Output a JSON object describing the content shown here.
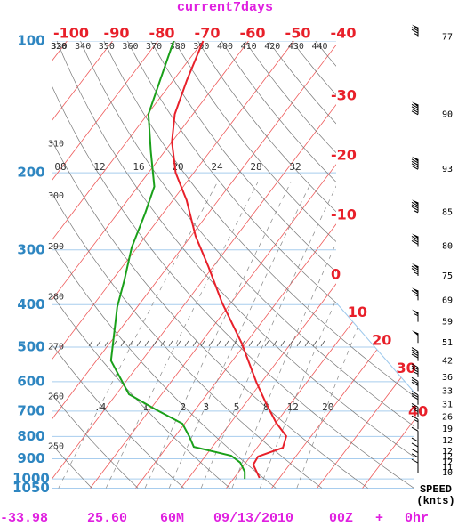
{
  "chart_data": {
    "type": "skewt",
    "title": "current7days",
    "ylog": true,
    "ylim": [
      1050,
      100
    ],
    "yticks": [
      100,
      200,
      300,
      400,
      500,
      600,
      700,
      800,
      900,
      1000,
      1050
    ],
    "xticks": [
      -100,
      -90,
      -80,
      -70,
      -60,
      -50,
      -40,
      -30,
      -20,
      -10,
      0,
      10,
      20,
      30,
      40
    ],
    "dry_adiabats_top": [
      320,
      330,
      340,
      350,
      360,
      370,
      380,
      390,
      400,
      410,
      420,
      430,
      440
    ],
    "dry_adiabats_left": [
      250,
      260,
      270,
      280,
      290,
      300,
      310
    ],
    "mixing_ratio_ticks": [
      {
        "value": 0.4,
        "label": ".4"
      },
      1,
      2,
      3,
      5,
      8,
      12,
      20
    ],
    "upper_labels": [
      "08",
      "12",
      "16",
      "20",
      "24",
      "28",
      "32"
    ],
    "series": [
      {
        "color": "#e8202a",
        "pressure": [
          100,
          123,
          147,
          170,
          200,
          231,
          279,
          328,
          396,
          489,
          603,
          678,
          744,
          799,
          849,
          889,
          928,
          995
        ],
        "values": [
          -70,
          -67,
          -64,
          -60,
          -54,
          -47,
          -39,
          -31,
          -22,
          -11,
          -1,
          5,
          10,
          14.5,
          15.7,
          11.7,
          12,
          15.6
        ]
      },
      {
        "color": "#1aa01a",
        "pressure": [
          100,
          123,
          147,
          179,
          215,
          248,
          296,
          352,
          405,
          537,
          641,
          694,
          748,
          799,
          845,
          885,
          918,
          963,
          1000
        ],
        "values": [
          -76.5,
          -72.9,
          -69.8,
          -63,
          -56.4,
          -53.9,
          -51.2,
          -47.3,
          -44.4,
          -36.8,
          -27.2,
          -18.8,
          -10.5,
          -6.9,
          -4.1,
          5.6,
          8.8,
          11.3,
          12.5
        ]
      }
    ],
    "wind": {
      "label": "SPEED",
      "unit": "(knts)",
      "pressure": [
        98,
        147,
        196,
        246,
        294,
        344,
        391,
        438,
        489,
        538,
        586,
        630,
        677,
        722,
        770,
        818,
        865,
        889,
        917,
        940,
        968
      ],
      "values": [
        77,
        90,
        93,
        85,
        80,
        75,
        69,
        59,
        51,
        42,
        36,
        33,
        31,
        26,
        19,
        12,
        12,
        12,
        12,
        11,
        10
      ]
    },
    "footer": [
      "-33.98",
      "25.60",
      "60M",
      "09/13/2010",
      "00Z",
      "+",
      "0hr"
    ]
  }
}
